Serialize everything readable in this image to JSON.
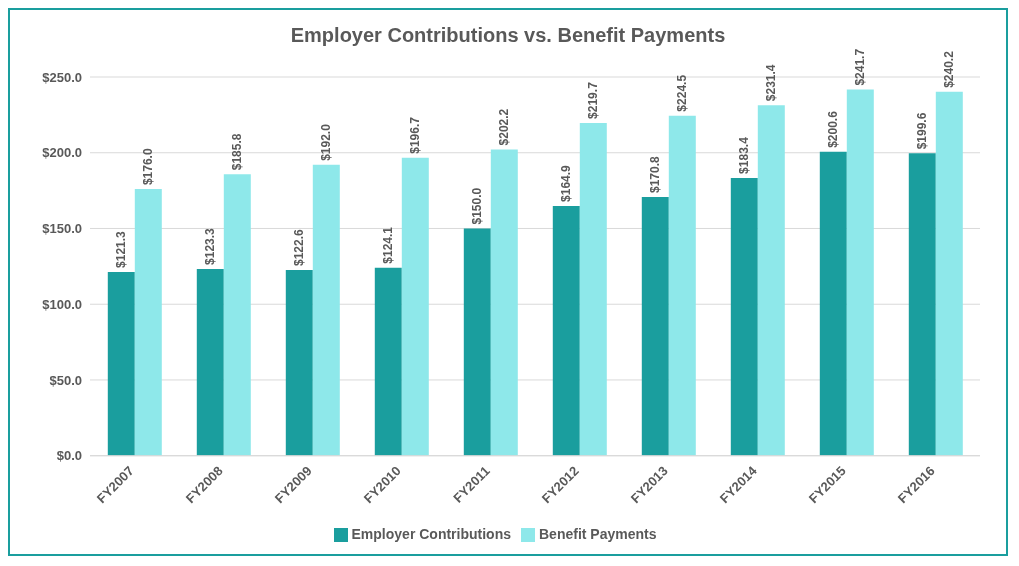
{
  "chart_data": {
    "type": "bar",
    "title": "Employer Contributions vs. Benefit Payments",
    "categories": [
      "FY2007",
      "FY2008",
      "FY2009",
      "FY2010",
      "FY2011",
      "FY2012",
      "FY2013",
      "FY2014",
      "FY2015",
      "FY2016"
    ],
    "series": [
      {
        "name": "Employer Contributions",
        "color": "#1a9e9e",
        "values": [
          121.3,
          123.3,
          122.6,
          124.1,
          150.0,
          164.9,
          170.8,
          183.4,
          200.6,
          199.6
        ],
        "value_labels": [
          "$121.3",
          "$123.3",
          "$122.6",
          "$124.1",
          "$150.0",
          "$164.9",
          "$170.8",
          "$183.4",
          "$200.6",
          "$199.6"
        ]
      },
      {
        "name": "Benefit Payments",
        "color": "#8ee8ea",
        "values": [
          176.0,
          185.8,
          192.0,
          196.7,
          202.2,
          219.7,
          224.5,
          231.4,
          241.7,
          240.2
        ],
        "value_labels": [
          "$176.0",
          "$185.8",
          "$192.0",
          "$196.7",
          "$202.2",
          "$219.7",
          "$224.5",
          "$231.4",
          "$241.7",
          "$240.2"
        ]
      }
    ],
    "ylim": [
      0,
      250
    ],
    "yticks": [
      {
        "value": 0,
        "label": "$0.0"
      },
      {
        "value": 50,
        "label": "$50.0"
      },
      {
        "value": 100,
        "label": "$100.0"
      },
      {
        "value": 150,
        "label": "$150.0"
      },
      {
        "value": 200,
        "label": "$200.0"
      },
      {
        "value": 250,
        "label": "$250.0"
      }
    ],
    "grid": "y",
    "legend": "bottom"
  }
}
